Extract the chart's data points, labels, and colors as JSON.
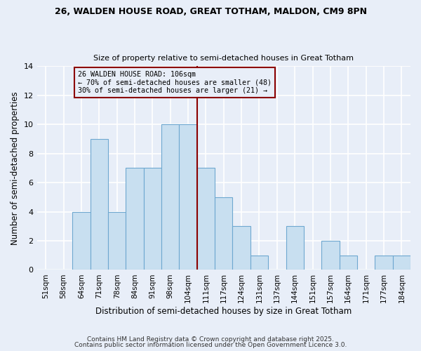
{
  "title1": "26, WALDEN HOUSE ROAD, GREAT TOTHAM, MALDON, CM9 8PN",
  "title2": "Size of property relative to semi-detached houses in Great Totham",
  "xlabel": "Distribution of semi-detached houses by size in Great Totham",
  "ylabel": "Number of semi-detached properties",
  "categories": [
    "51sqm",
    "58sqm",
    "64sqm",
    "71sqm",
    "78sqm",
    "84sqm",
    "91sqm",
    "98sqm",
    "104sqm",
    "111sqm",
    "117sqm",
    "124sqm",
    "131sqm",
    "137sqm",
    "144sqm",
    "151sqm",
    "157sqm",
    "164sqm",
    "171sqm",
    "177sqm",
    "184sqm"
  ],
  "values": [
    0,
    0,
    4,
    9,
    4,
    7,
    7,
    10,
    10,
    7,
    5,
    3,
    1,
    0,
    3,
    0,
    2,
    1,
    0,
    1,
    1
  ],
  "bar_color": "#c8dff0",
  "bar_edge_color": "#6ea8d0",
  "highlight_line_index": 8,
  "annotation_line1": "26 WALDEN HOUSE ROAD: 106sqm",
  "annotation_line2": "← 70% of semi-detached houses are smaller (48)",
  "annotation_line3": "30% of semi-detached houses are larger (21) →",
  "annotation_box_color": "#8b0000",
  "ylim": [
    0,
    14
  ],
  "yticks": [
    0,
    2,
    4,
    6,
    8,
    10,
    12,
    14
  ],
  "footer1": "Contains HM Land Registry data © Crown copyright and database right 2025.",
  "footer2": "Contains public sector information licensed under the Open Government Licence 3.0.",
  "bg_color": "#e8eef8",
  "grid_color": "#ffffff"
}
